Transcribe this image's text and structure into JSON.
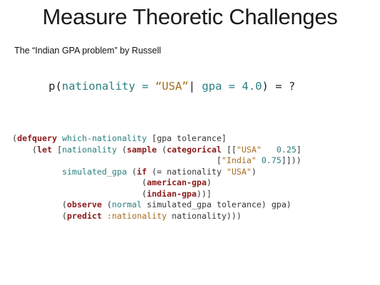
{
  "slide": {
    "title": "Measure Theoretic Challenges",
    "subtitle": "The “Indian GPA problem” by Russell"
  },
  "formula": {
    "p_open": "p(",
    "var": "nationality",
    "eq1": " = ",
    "value": "“USA”",
    "bar": "| ",
    "cond": "gpa = 4.0",
    "tail": ") = ?"
  },
  "code": {
    "l1": {
      "a": "(",
      "kw": "defquery",
      "b": " ",
      "name": "which-nationality",
      "c": " [gpa tolerance]"
    },
    "l2": {
      "a": "    (",
      "kw": "let",
      "b": " [",
      "v": "nationality",
      "c": " (",
      "kw2": "sample",
      "d": " (",
      "kw3": "categorical",
      "e": " [[",
      "s": "\"USA\"",
      "f": "   ",
      "n": "0.25",
      "g": "]"
    },
    "l3": {
      "a": "                                         [",
      "s": "\"India\"",
      "b": " ",
      "n": "0.75",
      "c": "]]))"
    },
    "l4": {
      "a": "          ",
      "v": "simulated_gpa",
      "b": " (",
      "kw": "if",
      "c": " (= nationality ",
      "s": "\"USA\"",
      "d": ")"
    },
    "l5": {
      "a": "                          (",
      "kw": "american-gpa",
      "b": ")"
    },
    "l6": {
      "a": "                          (",
      "kw": "indian-gpa",
      "b": "))]"
    },
    "l7": {
      "a": "          (",
      "kw": "observe",
      "b": " (",
      "fn": "normal",
      "c": " simulated_gpa tolerance) gpa)"
    },
    "l8": {
      "a": "          (",
      "kw": "predict",
      "b": " ",
      "k": ":nationality",
      "c": " nationality)))"
    }
  }
}
